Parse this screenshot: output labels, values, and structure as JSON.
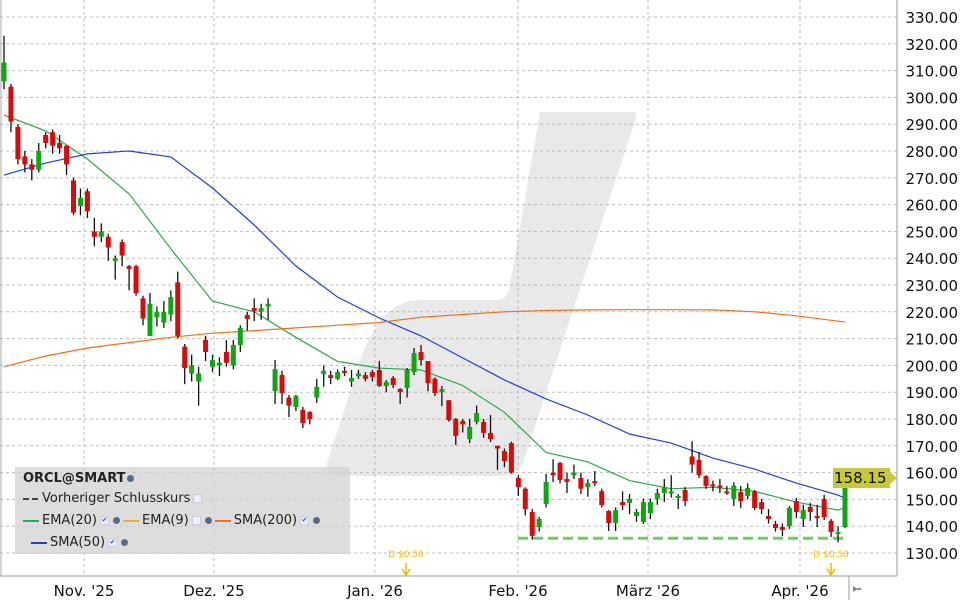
{
  "legend": {
    "symbol": "ORCL@SMART",
    "prev_close": "Vorheriger Schlusskurs",
    "ema20": "EMA(20)",
    "ema9": "EMA(9)",
    "sma200": "SMA(200)",
    "sma50": "SMA(50)"
  },
  "last_price_label": "158.15",
  "colors": {
    "up": "#11a611",
    "down": "#d60b0b",
    "ema20": "#2ea84a",
    "ema9": "#e0b050",
    "sma200": "#f07020",
    "sma50": "#2040d0",
    "price_tag": "#c7c83c",
    "dividend": "#f5b800"
  },
  "chart_data": {
    "type": "candlestick",
    "ylim": [
      130,
      330
    ],
    "y_ticks": [
      "130.00",
      "140.00",
      "150.00",
      "160.00",
      "170.00",
      "180.00",
      "190.00",
      "200.00",
      "210.00",
      "220.00",
      "230.00",
      "240.00",
      "250.00",
      "260.00",
      "270.00",
      "280.00",
      "290.00",
      "300.00",
      "310.00",
      "320.00",
      "330.00"
    ],
    "x_ticks": [
      "Nov. '25",
      "Dez. '25",
      "Jan. '26",
      "Feb. '26",
      "März '26",
      "Apr. '26"
    ],
    "grid": true,
    "legend_placement": "bottom-left",
    "candles_ohlc": [
      [
        306,
        323,
        303,
        313
      ],
      [
        304,
        305,
        287,
        291
      ],
      [
        289,
        290,
        275,
        277
      ],
      [
        278,
        280,
        272,
        275
      ],
      [
        275,
        277,
        269,
        273
      ],
      [
        273,
        283,
        272,
        280
      ],
      [
        286,
        287,
        281,
        283
      ],
      [
        287,
        288,
        279,
        282
      ],
      [
        283,
        286,
        279,
        281
      ],
      [
        282,
        282,
        271,
        275
      ],
      [
        269,
        270,
        256,
        257
      ],
      [
        259.5,
        266,
        256,
        262.5
      ],
      [
        265,
        266,
        255,
        257.5
      ],
      [
        250,
        255,
        244.5,
        248
      ],
      [
        248,
        253,
        246,
        250
      ],
      [
        248,
        249,
        239,
        244
      ],
      [
        239,
        241,
        232,
        240
      ],
      [
        246,
        247,
        237,
        241
      ],
      [
        237,
        237.5,
        228,
        236
      ],
      [
        237,
        237.5,
        226,
        227
      ],
      [
        225,
        226,
        215,
        217.5
      ],
      [
        211,
        227,
        211,
        223
      ],
      [
        218,
        222,
        214.5,
        220
      ],
      [
        216,
        224,
        214,
        220
      ],
      [
        219,
        228,
        216.5,
        225.5
      ],
      [
        231,
        235,
        210,
        211
      ],
      [
        207,
        208,
        193,
        199
      ],
      [
        197,
        204,
        194,
        200
      ],
      [
        194,
        199.5,
        185,
        197
      ],
      [
        209.5,
        211,
        201.6,
        205
      ],
      [
        199.5,
        204,
        197.5,
        202
      ],
      [
        200,
        203,
        196,
        201
      ],
      [
        205,
        209.5,
        199.5,
        201
      ],
      [
        200,
        209.5,
        198.5,
        207.6
      ],
      [
        207.6,
        215,
        205,
        214
      ],
      [
        218.8,
        220,
        213,
        217.3
      ],
      [
        221.4,
        225,
        216.5,
        220.3
      ],
      [
        220,
        223,
        217,
        221.4
      ],
      [
        222,
        225,
        217,
        223
      ],
      [
        190.4,
        202,
        185.6,
        198.6
      ],
      [
        196.4,
        198,
        185.6,
        189.7
      ],
      [
        188,
        189,
        180.7,
        185
      ],
      [
        184.5,
        189,
        183,
        188.6
      ],
      [
        183.4,
        184.5,
        176.6,
        178.5
      ],
      [
        182.6,
        183,
        178,
        180
      ],
      [
        188,
        195,
        186,
        192
      ],
      [
        196.8,
        200,
        192,
        198
      ],
      [
        196.4,
        198,
        193,
        195.3
      ],
      [
        195,
        198.5,
        194.5,
        197.5
      ],
      [
        198,
        199.5,
        196,
        197.2
      ],
      [
        194,
        198.3,
        192,
        195.3
      ],
      [
        196,
        198.3,
        195,
        197
      ],
      [
        196.4,
        197.5,
        194,
        195
      ],
      [
        197.5,
        198.3,
        194,
        195.7
      ],
      [
        198.3,
        201.6,
        192,
        192.3
      ],
      [
        192.3,
        194.5,
        190,
        193.8
      ],
      [
        195.3,
        196,
        191.5,
        192.7
      ],
      [
        191.2,
        191.5,
        185.6,
        190.1
      ],
      [
        191.6,
        199,
        188,
        198.3
      ],
      [
        197.5,
        206.5,
        196.4,
        204.6
      ],
      [
        205,
        207.6,
        200,
        202
      ],
      [
        201.6,
        201.6,
        190.4,
        193.4
      ],
      [
        195,
        195.5,
        188.6,
        189.7
      ],
      [
        190.1,
        192.3,
        184.8,
        191.2
      ],
      [
        187,
        187,
        179,
        179.6
      ],
      [
        180,
        180.4,
        170.3,
        173.7
      ],
      [
        179.3,
        180,
        175,
        178
      ],
      [
        172.5,
        180,
        171,
        177
      ],
      [
        178.9,
        185,
        178,
        182.2
      ],
      [
        178.9,
        180,
        173,
        174.8
      ],
      [
        174.8,
        181.5,
        171.4,
        172.5
      ],
      [
        170,
        170,
        161,
        169
      ],
      [
        168,
        169,
        162,
        164.3
      ],
      [
        171,
        171.5,
        159.6,
        160
      ],
      [
        158,
        159,
        151.3,
        154.6
      ],
      [
        154,
        154.5,
        144,
        146.4
      ],
      [
        145.3,
        146.4,
        135,
        136.4
      ],
      [
        139.7,
        143.5,
        138,
        142.7
      ],
      [
        148.3,
        159.5,
        147,
        156.5
      ],
      [
        160,
        165,
        156.5,
        159
      ],
      [
        163.6,
        164,
        156,
        157.2
      ],
      [
        157.6,
        160,
        152.4,
        156.5
      ],
      [
        159,
        163,
        157.6,
        160
      ],
      [
        158,
        160,
        152,
        154
      ],
      [
        154.6,
        157.5,
        151,
        156.1
      ],
      [
        156.8,
        160.6,
        155,
        156.1
      ],
      [
        153.1,
        154,
        147,
        147.9
      ],
      [
        145.7,
        146,
        138.2,
        141.2
      ],
      [
        141.2,
        147,
        138.2,
        146
      ],
      [
        149,
        153,
        146,
        147.9
      ],
      [
        148.7,
        152,
        144.5,
        150.2
      ],
      [
        143.8,
        146.4,
        141.6,
        145.3
      ],
      [
        141.6,
        150.3,
        140.8,
        149
      ],
      [
        144.9,
        150.3,
        142.6,
        149
      ],
      [
        150.2,
        154,
        148,
        152.4
      ],
      [
        152.4,
        157.6,
        149,
        154.6
      ],
      [
        152.2,
        159,
        150.7,
        153
      ],
      [
        150.5,
        152,
        146.4,
        151.3
      ],
      [
        153.5,
        154.6,
        147.5,
        149.4
      ],
      [
        166,
        171.7,
        160,
        163
      ],
      [
        164.7,
        167.7,
        158,
        159
      ],
      [
        158.7,
        159,
        153.9,
        155
      ],
      [
        155.6,
        157,
        153,
        155.2
      ],
      [
        155.2,
        157.6,
        152.4,
        154.5
      ],
      [
        153,
        155,
        151.7,
        152.4
      ],
      [
        150.2,
        156.4,
        147.5,
        155.2
      ],
      [
        152.8,
        155,
        146.8,
        149.4
      ],
      [
        151.3,
        156,
        150,
        154.3
      ],
      [
        153,
        153.5,
        146,
        146.8
      ],
      [
        149,
        150.2,
        144.5,
        146.4
      ],
      [
        143.8,
        146.4,
        141,
        142.7
      ],
      [
        140.8,
        142,
        138,
        139.3
      ],
      [
        139.7,
        141,
        136.3,
        138.6
      ],
      [
        140,
        147.5,
        139,
        146.8
      ],
      [
        149.4,
        150.5,
        143,
        145.3
      ],
      [
        142.7,
        148,
        139.7,
        146
      ],
      [
        147.2,
        148.7,
        142,
        145.3
      ],
      [
        143.8,
        148,
        139.7,
        143
      ],
      [
        150.2,
        151.7,
        142.3,
        143.4
      ],
      [
        142,
        142.7,
        136,
        137.8
      ],
      [
        137.4,
        140,
        134,
        137.8
      ],
      [
        139.7,
        155.6,
        139.3,
        155.2
      ]
    ],
    "series": [
      {
        "name": "EMA(20)",
        "values": [
          293.4,
          287.5,
          277,
          264,
          243.5,
          224,
          220,
          210.5,
          201.5,
          199,
          198.3,
          192.5,
          182.5,
          167.5,
          164,
          157,
          154,
          154.5,
          153,
          149,
          146,
          147
        ]
      },
      {
        "name": "SMA(50)",
        "values": [
          271,
          275.5,
          278.9,
          280,
          277.8,
          266.2,
          252.4,
          237.1,
          225.5,
          217.7,
          211,
          202.8,
          194.6,
          187.5,
          181.5,
          174.4,
          171,
          165.4,
          161.3,
          156.1,
          151.6,
          150.4
        ]
      },
      {
        "name": "SMA(200)",
        "values": [
          199.5,
          203.5,
          206.5,
          208.5,
          210.5,
          212,
          213,
          214,
          215,
          216,
          218,
          219,
          220,
          220.5,
          220.7,
          220.8,
          220.8,
          220.7,
          220,
          218.5,
          216.5,
          216.2
        ]
      }
    ],
    "reference_line": {
      "value": 135.5
    },
    "annotations": [
      "D $0.50",
      "D $0.50"
    ]
  }
}
